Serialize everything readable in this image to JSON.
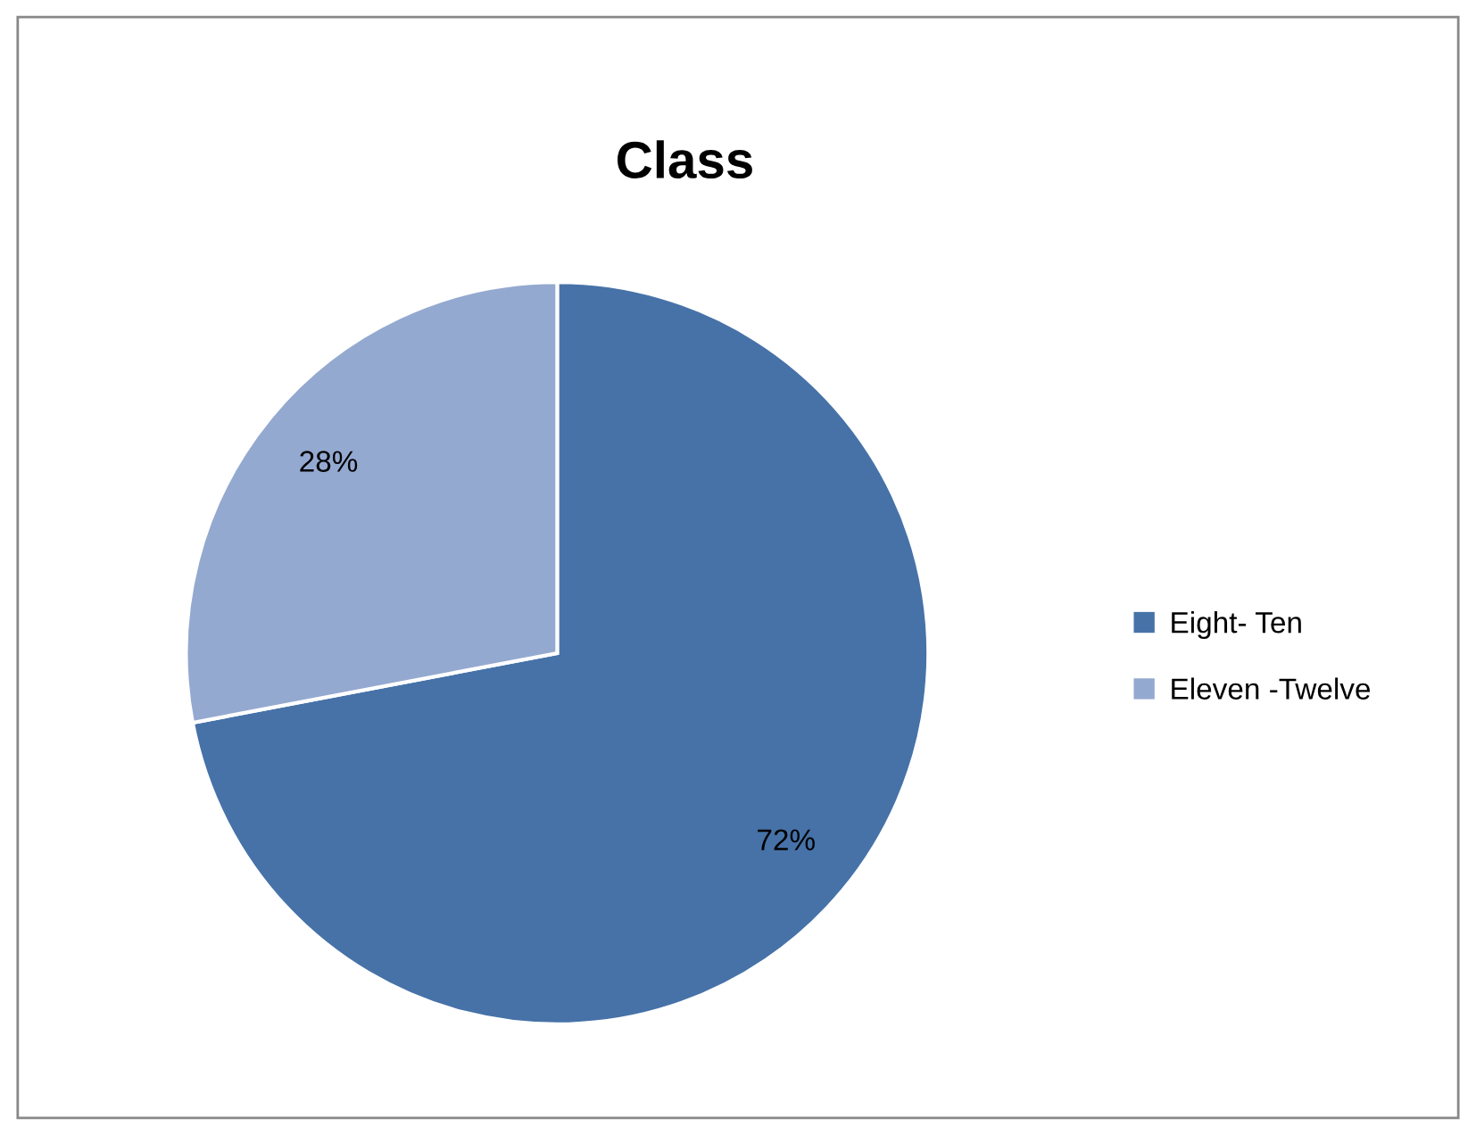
{
  "chart_data": {
    "type": "pie",
    "title": "Class",
    "categories": [
      "Eight- Ten",
      "Eleven -Twelve"
    ],
    "values": [
      72,
      28
    ],
    "colors": [
      "#4672a8",
      "#94a9d0"
    ],
    "value_labels": [
      "72%",
      "28%"
    ],
    "legend": "right"
  }
}
